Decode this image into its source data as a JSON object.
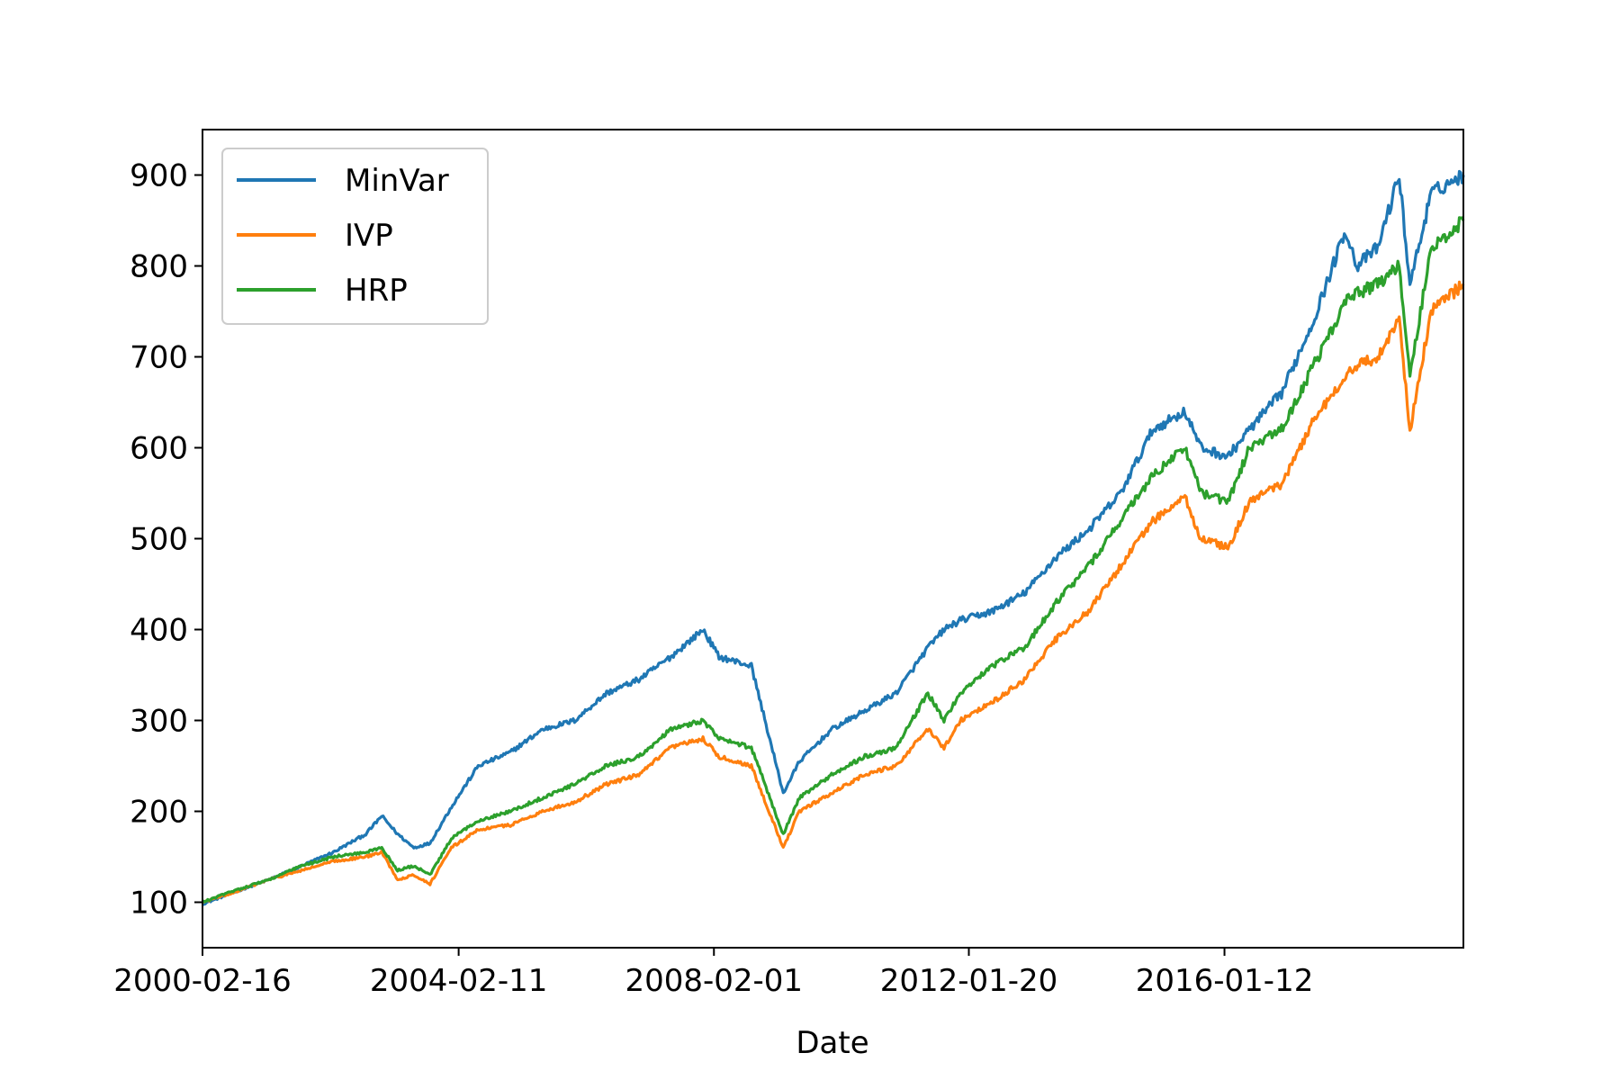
{
  "chart_data": {
    "type": "line",
    "title": "",
    "xlabel": "Date",
    "ylabel": "",
    "x_ticks": [
      "2000-02-16",
      "2004-02-11",
      "2008-02-01",
      "2012-01-20",
      "2016-01-12"
    ],
    "y_ticks": [
      100,
      200,
      300,
      400,
      500,
      600,
      700,
      800,
      900
    ],
    "xlim": [
      "2000-02-16",
      "2019-10-01"
    ],
    "ylim": [
      50,
      950
    ],
    "grid": false,
    "legend_position": "top-left",
    "series": [
      {
        "name": "MinVar",
        "color": "#1f77b4",
        "points": [
          [
            "2000-02-16",
            98
          ],
          [
            "2000-08-01",
            110
          ],
          [
            "2001-03-01",
            125
          ],
          [
            "2001-09-01",
            140
          ],
          [
            "2002-03-01",
            155
          ],
          [
            "2002-09-01",
            175
          ],
          [
            "2002-12-01",
            195
          ],
          [
            "2003-03-01",
            175
          ],
          [
            "2003-06-01",
            160
          ],
          [
            "2003-09-01",
            165
          ],
          [
            "2004-01-01",
            205
          ],
          [
            "2004-06-01",
            250
          ],
          [
            "2004-12-01",
            265
          ],
          [
            "2005-06-01",
            290
          ],
          [
            "2005-12-01",
            300
          ],
          [
            "2006-06-01",
            330
          ],
          [
            "2006-12-01",
            345
          ],
          [
            "2007-06-01",
            370
          ],
          [
            "2007-12-01",
            400
          ],
          [
            "2008-03-01",
            370
          ],
          [
            "2008-09-01",
            360
          ],
          [
            "2009-03-01",
            220
          ],
          [
            "2009-06-01",
            255
          ],
          [
            "2009-12-01",
            290
          ],
          [
            "2010-06-01",
            310
          ],
          [
            "2010-12-01",
            330
          ],
          [
            "2011-06-01",
            380
          ],
          [
            "2011-09-01",
            400
          ],
          [
            "2011-12-01",
            410
          ],
          [
            "2012-06-01",
            420
          ],
          [
            "2012-12-01",
            440
          ],
          [
            "2013-06-01",
            480
          ],
          [
            "2013-12-01",
            510
          ],
          [
            "2014-06-01",
            550
          ],
          [
            "2014-12-01",
            620
          ],
          [
            "2015-06-01",
            640
          ],
          [
            "2015-09-01",
            600
          ],
          [
            "2016-02-01",
            590
          ],
          [
            "2016-06-01",
            620
          ],
          [
            "2016-12-01",
            660
          ],
          [
            "2017-06-01",
            740
          ],
          [
            "2017-12-01",
            840
          ],
          [
            "2018-02-01",
            800
          ],
          [
            "2018-06-01",
            820
          ],
          [
            "2018-10-01",
            900
          ],
          [
            "2018-12-01",
            780
          ],
          [
            "2019-04-01",
            880
          ],
          [
            "2019-10-01",
            900
          ]
        ]
      },
      {
        "name": "IVP",
        "color": "#ff7f0e",
        "points": [
          [
            "2000-02-16",
            100
          ],
          [
            "2000-08-01",
            110
          ],
          [
            "2001-03-01",
            125
          ],
          [
            "2001-09-01",
            135
          ],
          [
            "2002-03-01",
            145
          ],
          [
            "2002-09-01",
            150
          ],
          [
            "2002-12-01",
            155
          ],
          [
            "2003-03-01",
            125
          ],
          [
            "2003-06-01",
            130
          ],
          [
            "2003-09-01",
            120
          ],
          [
            "2004-01-01",
            160
          ],
          [
            "2004-06-01",
            180
          ],
          [
            "2004-12-01",
            185
          ],
          [
            "2005-06-01",
            200
          ],
          [
            "2005-12-01",
            210
          ],
          [
            "2006-06-01",
            230
          ],
          [
            "2006-12-01",
            240
          ],
          [
            "2007-06-01",
            270
          ],
          [
            "2007-12-01",
            280
          ],
          [
            "2008-03-01",
            260
          ],
          [
            "2008-09-01",
            250
          ],
          [
            "2009-03-01",
            160
          ],
          [
            "2009-06-01",
            200
          ],
          [
            "2009-12-01",
            220
          ],
          [
            "2010-06-01",
            240
          ],
          [
            "2010-12-01",
            250
          ],
          [
            "2011-06-01",
            290
          ],
          [
            "2011-09-01",
            270
          ],
          [
            "2011-12-01",
            300
          ],
          [
            "2012-06-01",
            320
          ],
          [
            "2012-12-01",
            345
          ],
          [
            "2013-06-01",
            390
          ],
          [
            "2013-12-01",
            420
          ],
          [
            "2014-06-01",
            470
          ],
          [
            "2014-12-01",
            520
          ],
          [
            "2015-06-01",
            545
          ],
          [
            "2015-09-01",
            500
          ],
          [
            "2016-02-01",
            490
          ],
          [
            "2016-06-01",
            540
          ],
          [
            "2016-12-01",
            560
          ],
          [
            "2017-06-01",
            630
          ],
          [
            "2017-12-01",
            680
          ],
          [
            "2018-02-01",
            690
          ],
          [
            "2018-06-01",
            700
          ],
          [
            "2018-10-01",
            740
          ],
          [
            "2018-12-01",
            620
          ],
          [
            "2019-04-01",
            750
          ],
          [
            "2019-10-01",
            780
          ]
        ]
      },
      {
        "name": "HRP",
        "color": "#2ca02c",
        "points": [
          [
            "2000-02-16",
            100
          ],
          [
            "2000-08-01",
            112
          ],
          [
            "2001-03-01",
            125
          ],
          [
            "2001-09-01",
            140
          ],
          [
            "2002-03-01",
            150
          ],
          [
            "2002-09-01",
            155
          ],
          [
            "2002-12-01",
            160
          ],
          [
            "2003-03-01",
            135
          ],
          [
            "2003-06-01",
            140
          ],
          [
            "2003-09-01",
            130
          ],
          [
            "2004-01-01",
            170
          ],
          [
            "2004-06-01",
            190
          ],
          [
            "2004-12-01",
            200
          ],
          [
            "2005-06-01",
            215
          ],
          [
            "2005-12-01",
            230
          ],
          [
            "2006-06-01",
            250
          ],
          [
            "2006-12-01",
            260
          ],
          [
            "2007-06-01",
            290
          ],
          [
            "2007-12-01",
            300
          ],
          [
            "2008-03-01",
            280
          ],
          [
            "2008-09-01",
            270
          ],
          [
            "2009-03-01",
            175
          ],
          [
            "2009-06-01",
            215
          ],
          [
            "2009-12-01",
            240
          ],
          [
            "2010-06-01",
            260
          ],
          [
            "2010-12-01",
            270
          ],
          [
            "2011-06-01",
            330
          ],
          [
            "2011-09-01",
            300
          ],
          [
            "2011-12-01",
            330
          ],
          [
            "2012-06-01",
            360
          ],
          [
            "2012-12-01",
            380
          ],
          [
            "2013-06-01",
            430
          ],
          [
            "2013-12-01",
            470
          ],
          [
            "2014-06-01",
            520
          ],
          [
            "2014-12-01",
            570
          ],
          [
            "2015-06-01",
            600
          ],
          [
            "2015-09-01",
            550
          ],
          [
            "2016-02-01",
            540
          ],
          [
            "2016-06-01",
            600
          ],
          [
            "2016-12-01",
            620
          ],
          [
            "2017-06-01",
            690
          ],
          [
            "2017-12-01",
            760
          ],
          [
            "2018-02-01",
            770
          ],
          [
            "2018-06-01",
            780
          ],
          [
            "2018-10-01",
            800
          ],
          [
            "2018-12-01",
            680
          ],
          [
            "2019-04-01",
            820
          ],
          [
            "2019-10-01",
            850
          ]
        ]
      }
    ]
  }
}
